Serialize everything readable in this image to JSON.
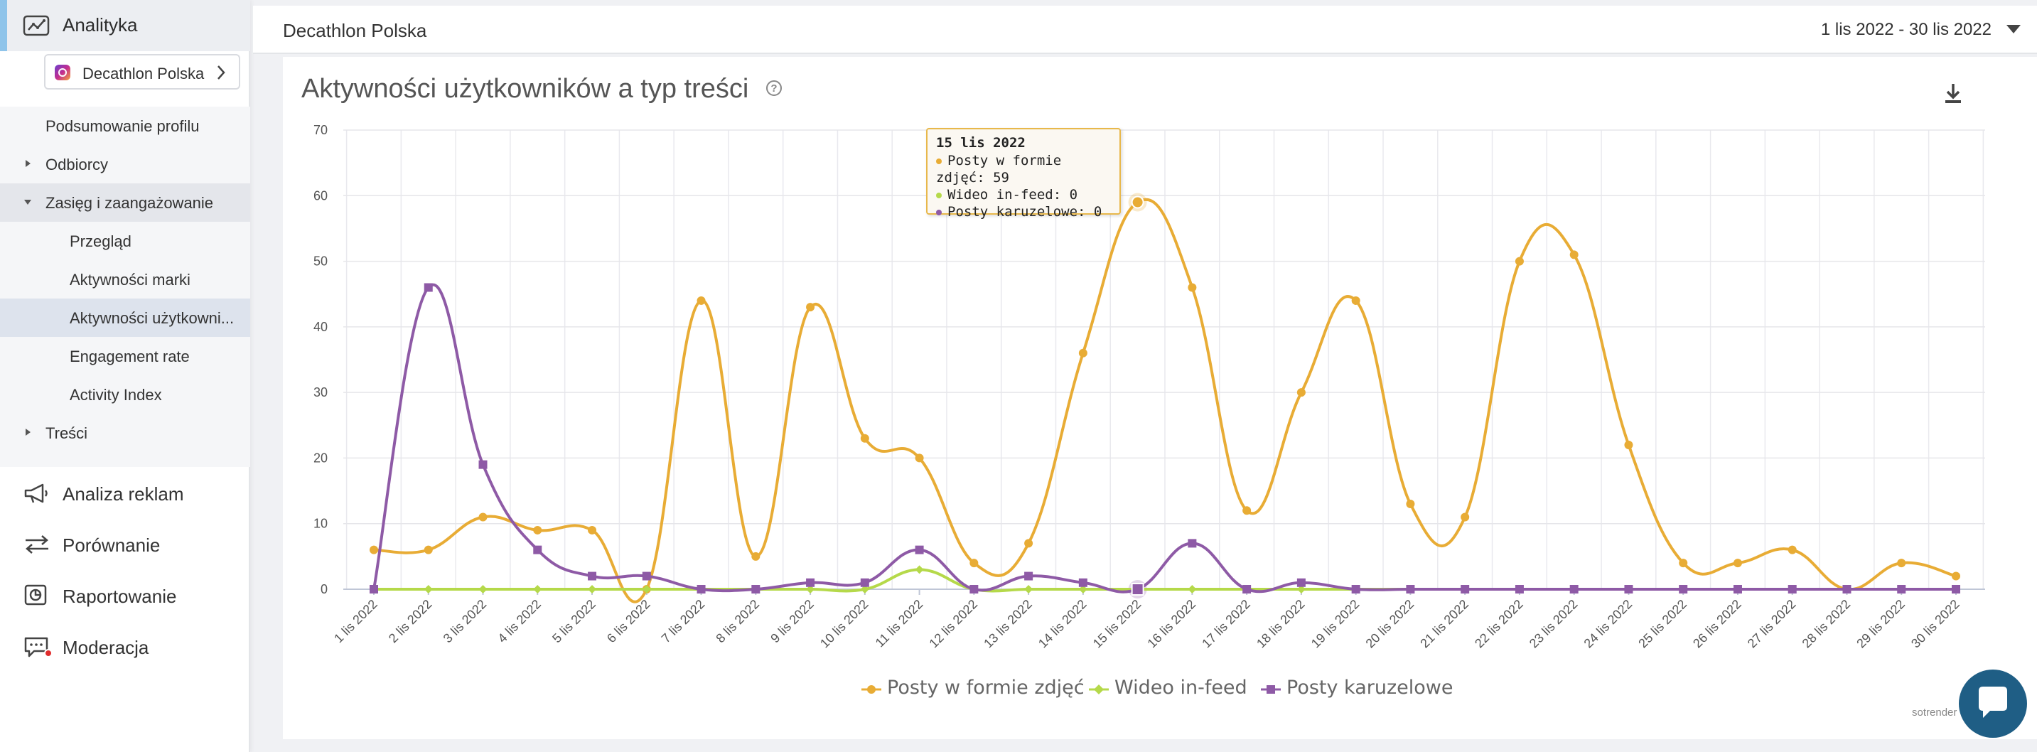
{
  "sidebar": {
    "top_label": "Analityka",
    "profile_name": "Decathlon Polska",
    "submenu": {
      "summary": "Podsumowanie profilu",
      "audience": "Odbiorcy",
      "reach": "Zasięg i zaangażowanie",
      "overview": "Przegląd",
      "brand": "Aktywności marki",
      "users": "Aktywności użytkowni...",
      "engagement": "Engagement rate",
      "activity": "Activity Index",
      "content": "Treści"
    },
    "nav": {
      "ads": "Analiza reklam",
      "compare": "Porównanie",
      "reports": "Raportowanie",
      "moderation": "Moderacja"
    }
  },
  "header": {
    "profile": "Decathlon Polska",
    "date_range": "1 lis 2022 - 30 lis 2022"
  },
  "card": {
    "title": "Aktywności użytkowników a typ treści",
    "help": "?"
  },
  "tooltip": {
    "title": "15 lis 2022",
    "rows": [
      "Posty w formie zdjęć: 59",
      "Wideo in-feed: 0",
      "Posty karuzelowe: 0"
    ]
  },
  "legend": [
    "Posty w formie zdjęć",
    "Wideo in-feed",
    "Posty karuzelowe"
  ],
  "credit": "sotrender",
  "colors": {
    "photo": "#e8ac35",
    "video": "#b5d94a",
    "carousel": "#8e5aa6",
    "accent": "#8fc4ea",
    "chat": "#1f5e85"
  },
  "chart_data": {
    "type": "line",
    "categories": [
      "1 lis 2022",
      "2 lis 2022",
      "3 lis 2022",
      "4 lis 2022",
      "5 lis 2022",
      "6 lis 2022",
      "7 lis 2022",
      "8 lis 2022",
      "9 lis 2022",
      "10 lis 2022",
      "11 lis 2022",
      "12 lis 2022",
      "13 lis 2022",
      "14 lis 2022",
      "15 lis 2022",
      "16 lis 2022",
      "17 lis 2022",
      "18 lis 2022",
      "19 lis 2022",
      "20 lis 2022",
      "21 lis 2022",
      "22 lis 2022",
      "23 lis 2022",
      "24 lis 2022",
      "25 lis 2022",
      "26 lis 2022",
      "27 lis 2022",
      "28 lis 2022",
      "29 lis 2022",
      "30 lis 2022"
    ],
    "series": [
      {
        "name": "Posty w formie zdjęć",
        "marker": "circle",
        "values": [
          6,
          6,
          11,
          9,
          9,
          0,
          44,
          5,
          43,
          23,
          20,
          4,
          7,
          36,
          59,
          46,
          12,
          30,
          44,
          13,
          11,
          50,
          51,
          22,
          4,
          4,
          6,
          0,
          4,
          2
        ]
      },
      {
        "name": "Wideo in-feed",
        "marker": "diamond",
        "values": [
          0,
          0,
          0,
          0,
          0,
          0,
          0,
          0,
          0,
          0,
          3,
          0,
          0,
          0,
          0,
          0,
          0,
          0,
          0,
          0,
          0,
          0,
          0,
          0,
          0,
          0,
          0,
          0,
          0,
          0
        ]
      },
      {
        "name": "Posty karuzelowe",
        "marker": "square",
        "values": [
          0,
          46,
          19,
          6,
          2,
          2,
          0,
          0,
          1,
          1,
          6,
          0,
          2,
          1,
          0,
          7,
          0,
          1,
          0,
          0,
          0,
          0,
          0,
          0,
          0,
          0,
          0,
          0,
          0,
          0
        ]
      }
    ],
    "yticks": [
      0,
      10,
      20,
      30,
      40,
      50,
      60,
      70
    ],
    "ylim": [
      0,
      70
    ],
    "grid": true,
    "legend_position": "bottom"
  }
}
